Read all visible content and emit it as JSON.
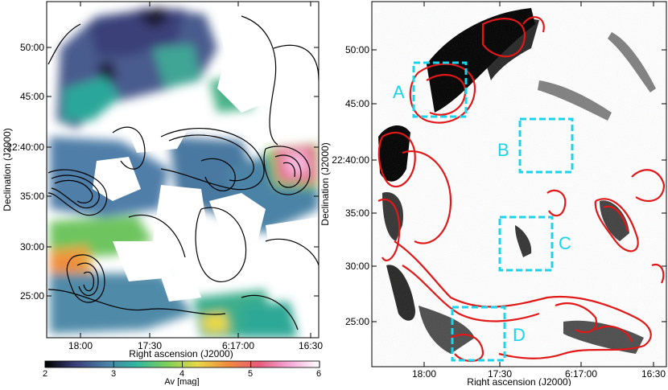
{
  "chart_data": [
    {
      "type": "heatmap",
      "panel": "left",
      "xlabel": "Right ascension (J2000)",
      "ylabel": "Declination (J2000)",
      "x_ticks": [
        "18:00",
        "17:30",
        "6:17:00",
        "16:30"
      ],
      "y_ticks": [
        "50:00",
        "45:00",
        "22:40:00",
        "35:00",
        "30:00",
        "25:00"
      ],
      "colorbar": {
        "label": "Av [mag]",
        "ticks": [
          "2",
          "3",
          "4",
          "5",
          "6"
        ],
        "range": [
          2,
          6
        ],
        "colors": [
          "#000000",
          "#3a3f7a",
          "#4a7fa8",
          "#2fb8a0",
          "#7ed05a",
          "#e8d84a",
          "#f08a3c",
          "#e85a7a",
          "#f4a8d8",
          "#ffffff"
        ]
      },
      "contour_color": "#000000"
    },
    {
      "type": "heatmap",
      "panel": "right",
      "xlabel": "Right ascension (J2000)",
      "ylabel": "Declination (J2000)",
      "x_ticks": [
        "18:00",
        "17:30",
        "6:17:00",
        "16:30"
      ],
      "y_ticks": [
        "50:00",
        "45:00",
        "22:40:00",
        "35:00",
        "30:00",
        "25:00"
      ],
      "contour_color": "#e01818",
      "box_color": "#19d4ea",
      "boxes": [
        {
          "label": "A"
        },
        {
          "label": "B"
        },
        {
          "label": "C"
        },
        {
          "label": "D"
        }
      ]
    }
  ]
}
